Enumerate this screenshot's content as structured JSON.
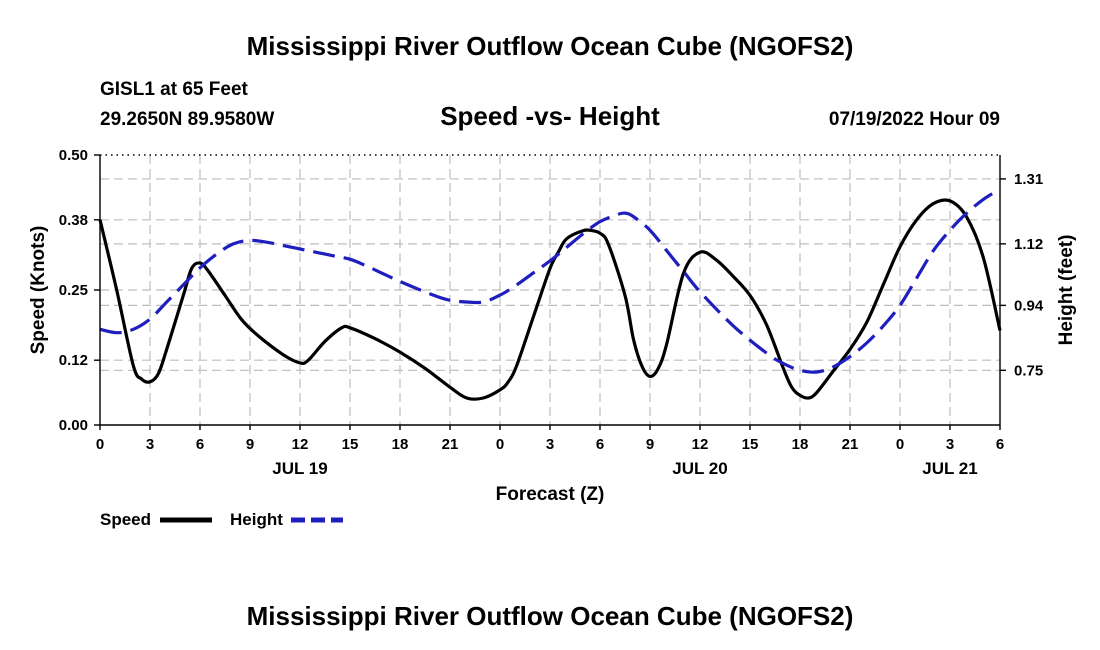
{
  "title": "Mississippi River Outflow Ocean Cube (NGOFS2)",
  "footer_title": "Mississippi River Outflow Ocean Cube (NGOFS2)",
  "station": "GISL1 at 65 Feet",
  "coords": "29.2650N  89.9580W",
  "chart_title": "Speed -vs- Height",
  "run_time": "07/19/2022 Hour 09",
  "colors": {
    "speed": "#000000",
    "height": "#1f1fbf",
    "grid": "#bdbdbd"
  },
  "chart_data": {
    "type": "line",
    "xlabel": "Forecast (Z)",
    "ylabel_left": "Speed (Knots)",
    "ylabel_right": "Height (feet)",
    "x_range_hours": [
      0,
      54
    ],
    "x_ticks": [
      {
        "h": 0,
        "label": "0"
      },
      {
        "h": 3,
        "label": "3"
      },
      {
        "h": 6,
        "label": "6"
      },
      {
        "h": 9,
        "label": "9"
      },
      {
        "h": 12,
        "label": "12"
      },
      {
        "h": 15,
        "label": "15"
      },
      {
        "h": 18,
        "label": "18"
      },
      {
        "h": 21,
        "label": "21"
      },
      {
        "h": 24,
        "label": "0"
      },
      {
        "h": 27,
        "label": "3"
      },
      {
        "h": 30,
        "label": "6"
      },
      {
        "h": 33,
        "label": "9"
      },
      {
        "h": 36,
        "label": "12"
      },
      {
        "h": 39,
        "label": "15"
      },
      {
        "h": 42,
        "label": "18"
      },
      {
        "h": 45,
        "label": "21"
      },
      {
        "h": 48,
        "label": "0"
      },
      {
        "h": 51,
        "label": "3"
      },
      {
        "h": 54,
        "label": "6"
      }
    ],
    "date_labels": [
      {
        "h": 12,
        "label": "JUL 19"
      },
      {
        "h": 36,
        "label": "JUL 20"
      },
      {
        "h": 51,
        "label": "JUL 21"
      }
    ],
    "y_left": {
      "range": [
        0,
        0.5
      ],
      "ticks": [
        "0.00",
        "0.12",
        "0.25",
        "0.38",
        "0.50"
      ]
    },
    "y_right": {
      "range": [
        0.59,
        1.38
      ],
      "ticks": [
        "0.75",
        "0.94",
        "1.12",
        "1.31"
      ]
    },
    "series": [
      {
        "name": "Speed",
        "axis": "left",
        "points": [
          [
            0,
            0.38
          ],
          [
            1,
            0.25
          ],
          [
            2,
            0.11
          ],
          [
            2.5,
            0.085
          ],
          [
            3,
            0.08
          ],
          [
            3.5,
            0.095
          ],
          [
            4,
            0.14
          ],
          [
            5,
            0.24
          ],
          [
            5.5,
            0.29
          ],
          [
            6,
            0.3
          ],
          [
            6.5,
            0.285
          ],
          [
            7.5,
            0.24
          ],
          [
            8.5,
            0.195
          ],
          [
            9.5,
            0.165
          ],
          [
            11,
            0.13
          ],
          [
            12,
            0.115
          ],
          [
            12.5,
            0.12
          ],
          [
            13.5,
            0.155
          ],
          [
            14.5,
            0.18
          ],
          [
            15,
            0.18
          ],
          [
            16.5,
            0.16
          ],
          [
            18,
            0.135
          ],
          [
            19.5,
            0.105
          ],
          [
            21,
            0.07
          ],
          [
            22,
            0.05
          ],
          [
            23,
            0.05
          ],
          [
            24,
            0.065
          ],
          [
            24.5,
            0.08
          ],
          [
            25,
            0.11
          ],
          [
            26,
            0.2
          ],
          [
            27,
            0.29
          ],
          [
            27.5,
            0.32
          ],
          [
            28,
            0.345
          ],
          [
            29,
            0.36
          ],
          [
            29.5,
            0.36
          ],
          [
            30,
            0.355
          ],
          [
            30.5,
            0.335
          ],
          [
            31.5,
            0.24
          ],
          [
            32,
            0.16
          ],
          [
            32.5,
            0.11
          ],
          [
            33,
            0.09
          ],
          [
            33.5,
            0.105
          ],
          [
            34,
            0.15
          ],
          [
            35,
            0.28
          ],
          [
            36,
            0.32
          ],
          [
            37,
            0.305
          ],
          [
            38,
            0.275
          ],
          [
            39,
            0.24
          ],
          [
            40,
            0.185
          ],
          [
            41,
            0.105
          ],
          [
            41.5,
            0.07
          ],
          [
            42,
            0.055
          ],
          [
            42.5,
            0.05
          ],
          [
            43,
            0.06
          ],
          [
            44,
            0.1
          ],
          [
            45,
            0.14
          ],
          [
            46,
            0.19
          ],
          [
            47,
            0.26
          ],
          [
            48,
            0.33
          ],
          [
            49,
            0.38
          ],
          [
            50,
            0.41
          ],
          [
            51,
            0.415
          ],
          [
            52,
            0.385
          ],
          [
            53,
            0.31
          ],
          [
            54,
            0.175
          ]
        ]
      },
      {
        "name": "Height",
        "axis": "right",
        "points": [
          [
            0,
            0.87
          ],
          [
            1,
            0.86
          ],
          [
            2,
            0.87
          ],
          [
            3,
            0.9
          ],
          [
            4,
            0.95
          ],
          [
            5,
            1.0
          ],
          [
            6,
            1.05
          ],
          [
            7,
            1.09
          ],
          [
            8,
            1.12
          ],
          [
            9,
            1.13
          ],
          [
            10,
            1.125
          ],
          [
            11,
            1.115
          ],
          [
            12,
            1.105
          ],
          [
            13,
            1.095
          ],
          [
            14,
            1.085
          ],
          [
            15,
            1.075
          ],
          [
            16,
            1.055
          ],
          [
            18,
            1.01
          ],
          [
            20,
            0.97
          ],
          [
            21,
            0.955
          ],
          [
            22,
            0.95
          ],
          [
            23,
            0.95
          ],
          [
            24,
            0.97
          ],
          [
            25,
            1.0
          ],
          [
            26,
            1.035
          ],
          [
            27,
            1.07
          ],
          [
            28,
            1.11
          ],
          [
            29,
            1.15
          ],
          [
            30,
            1.185
          ],
          [
            31,
            1.205
          ],
          [
            31.5,
            1.21
          ],
          [
            32,
            1.2
          ],
          [
            33,
            1.16
          ],
          [
            34,
            1.1
          ],
          [
            35,
            1.04
          ],
          [
            36,
            0.98
          ],
          [
            38,
            0.88
          ],
          [
            40,
            0.8
          ],
          [
            41,
            0.77
          ],
          [
            42,
            0.75
          ],
          [
            43,
            0.745
          ],
          [
            44,
            0.76
          ],
          [
            45,
            0.79
          ],
          [
            46,
            0.83
          ],
          [
            47,
            0.88
          ],
          [
            48,
            0.94
          ],
          [
            49,
            1.02
          ],
          [
            50,
            1.1
          ],
          [
            51,
            1.16
          ],
          [
            52,
            1.21
          ],
          [
            53,
            1.25
          ],
          [
            54,
            1.28
          ]
        ]
      }
    ],
    "legend": [
      {
        "name": "Speed",
        "label": "Speed",
        "style": "solid"
      },
      {
        "name": "Height",
        "label": "Height",
        "style": "dashed"
      }
    ]
  }
}
